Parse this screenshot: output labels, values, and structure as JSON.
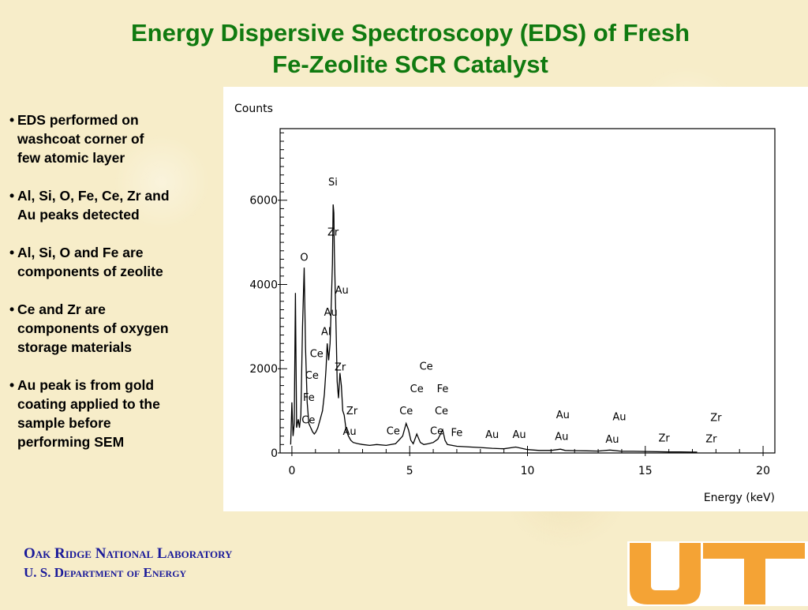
{
  "slide": {
    "title_line1": "Energy Dispersive Spectroscopy (EDS) of Fresh",
    "title_line2": "Fe-Zeolite SCR Catalyst",
    "bullets": [
      [
        "EDS performed on",
        "washcoat corner of",
        "few atomic layer"
      ],
      [
        "Al, Si, O, Fe, Ce, Zr  and",
        "Au peaks detected"
      ],
      [
        "Al, Si, O and Fe are",
        "components of zeolite"
      ],
      [
        "Ce and Zr are",
        "components of oxygen",
        "storage materials"
      ],
      [
        "Au peak is from gold",
        "coating applied to the",
        "sample before",
        "performing SEM"
      ]
    ],
    "footer_line1": "Oak Ridge National Laboratory",
    "footer_line2": "U. S. Department of Energy",
    "colors": {
      "title": "#107a10",
      "footer": "#1a1a9a",
      "logo": "#f4a335",
      "background": "#f7edc9"
    }
  },
  "chart_data": {
    "type": "line",
    "ylabel": "Counts",
    "xlabel": "Energy (keV)",
    "xlim": [
      -0.5,
      20.5
    ],
    "ylim": [
      0,
      7700
    ],
    "xticks": [
      0,
      5,
      10,
      15,
      20
    ],
    "yticks": [
      0,
      2000,
      4000,
      6000
    ],
    "grid": false,
    "legend": "none",
    "spectrum": {
      "x": [
        -0.05,
        0.0,
        0.05,
        0.1,
        0.15,
        0.2,
        0.27,
        0.32,
        0.38,
        0.45,
        0.52,
        0.58,
        0.65,
        0.72,
        0.8,
        0.88,
        0.95,
        1.02,
        1.1,
        1.2,
        1.3,
        1.38,
        1.45,
        1.5,
        1.56,
        1.62,
        1.68,
        1.72,
        1.75,
        1.78,
        1.8,
        1.84,
        1.88,
        1.92,
        1.98,
        2.04,
        2.1,
        2.16,
        2.22,
        2.3,
        2.4,
        2.5,
        2.6,
        2.8,
        3.0,
        3.3,
        3.6,
        4.0,
        4.4,
        4.7,
        4.85,
        4.95,
        5.05,
        5.15,
        5.3,
        5.45,
        5.6,
        5.8,
        6.0,
        6.2,
        6.4,
        6.5,
        6.6,
        6.8,
        7.0,
        7.3,
        7.6,
        8.0,
        8.5,
        9.0,
        9.5,
        10.0,
        10.5,
        11.0,
        11.4,
        11.6,
        12.0,
        12.5,
        13.0,
        13.5,
        14.0,
        14.5,
        15.0,
        15.5,
        16.0,
        16.5,
        17.0,
        17.2
      ],
      "y": [
        200,
        1200,
        400,
        700,
        3800,
        600,
        800,
        600,
        900,
        3000,
        4400,
        2500,
        1200,
        700,
        600,
        500,
        450,
        500,
        600,
        800,
        1000,
        1400,
        2000,
        2600,
        2200,
        2600,
        3700,
        4500,
        5900,
        5700,
        4800,
        3800,
        2800,
        1700,
        1300,
        1900,
        1600,
        1000,
        900,
        550,
        400,
        300,
        250,
        220,
        200,
        180,
        200,
        180,
        220,
        400,
        700,
        550,
        300,
        220,
        450,
        250,
        200,
        220,
        250,
        330,
        550,
        300,
        200,
        180,
        160,
        150,
        140,
        130,
        110,
        100,
        140,
        80,
        60,
        60,
        90,
        60,
        55,
        50,
        45,
        70,
        40,
        40,
        35,
        30,
        25,
        25,
        20,
        20
      ]
    },
    "peak_labels": [
      {
        "text": "Si",
        "x": 1.74,
        "y": 6350
      },
      {
        "text": "Zr",
        "x": 1.75,
        "y": 5160
      },
      {
        "text": "O",
        "x": 0.52,
        "y": 4560
      },
      {
        "text": "Au",
        "x": 2.12,
        "y": 3780
      },
      {
        "text": "Au",
        "x": 1.65,
        "y": 3260
      },
      {
        "text": "Al",
        "x": 1.45,
        "y": 2800
      },
      {
        "text": "Ce",
        "x": 1.05,
        "y": 2280
      },
      {
        "text": "Ce",
        "x": 0.85,
        "y": 1760
      },
      {
        "text": "Fe",
        "x": 0.72,
        "y": 1240
      },
      {
        "text": "Ce",
        "x": 0.7,
        "y": 700
      },
      {
        "text": "Zr",
        "x": 2.05,
        "y": 1960
      },
      {
        "text": "Zr",
        "x": 2.55,
        "y": 920
      },
      {
        "text": "Au",
        "x": 2.45,
        "y": 430
      },
      {
        "text": "Ce",
        "x": 5.7,
        "y": 1980
      },
      {
        "text": "Ce",
        "x": 5.3,
        "y": 1440
      },
      {
        "text": "Fe",
        "x": 6.4,
        "y": 1440
      },
      {
        "text": "Ce",
        "x": 6.35,
        "y": 920
      },
      {
        "text": "Ce",
        "x": 4.85,
        "y": 920
      },
      {
        "text": "Ce",
        "x": 4.3,
        "y": 440
      },
      {
        "text": "Ce",
        "x": 6.15,
        "y": 440
      },
      {
        "text": "Fe",
        "x": 7.0,
        "y": 400
      },
      {
        "text": "Au",
        "x": 8.5,
        "y": 360
      },
      {
        "text": "Au",
        "x": 9.65,
        "y": 360
      },
      {
        "text": "Au",
        "x": 11.5,
        "y": 820
      },
      {
        "text": "Au",
        "x": 11.45,
        "y": 310
      },
      {
        "text": "Au",
        "x": 13.9,
        "y": 780
      },
      {
        "text": "Au",
        "x": 13.6,
        "y": 240
      },
      {
        "text": "Zr",
        "x": 15.8,
        "y": 270
      },
      {
        "text": "Zr",
        "x": 18.0,
        "y": 760
      },
      {
        "text": "Zr",
        "x": 17.8,
        "y": 250
      }
    ]
  }
}
